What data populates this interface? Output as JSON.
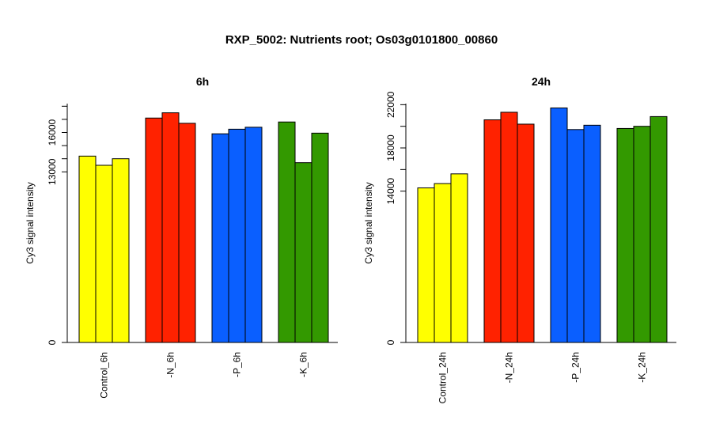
{
  "title": "RXP_5002: Nutrients root; Os03g0101800_00860",
  "chart_data": [
    {
      "type": "bar",
      "title": "6h",
      "ylabel": "Cy3 signal intensity",
      "ylim": [
        0,
        18200
      ],
      "major_ticks": [
        0,
        13000,
        16000
      ],
      "minor_ticks": [
        14000,
        15000,
        17000,
        18000
      ],
      "categories": [
        "Control_6h",
        "-N_6h",
        "-P_6h",
        "-K_6h"
      ],
      "colors": [
        "#ffff00",
        "#ff2200",
        "#0a5fff",
        "#339900"
      ],
      "values": [
        [
          14200,
          13500,
          14000
        ],
        [
          17100,
          17500,
          16700
        ],
        [
          15900,
          16250,
          16400
        ],
        [
          16800,
          13700,
          15950
        ]
      ]
    },
    {
      "type": "bar",
      "title": "24h",
      "ylabel": "Cy3 signal intensity",
      "ylim": [
        0,
        22100
      ],
      "major_ticks": [
        0,
        14000,
        18000,
        22000
      ],
      "minor_ticks": [
        16000,
        20000
      ],
      "categories": [
        "Control_24h",
        "-N_24h",
        "-P_24h",
        "-K_24h"
      ],
      "colors": [
        "#ffff00",
        "#ff2200",
        "#0a5fff",
        "#339900"
      ],
      "values": [
        [
          14300,
          14700,
          15600
        ],
        [
          20600,
          21300,
          20200
        ],
        [
          21700,
          19700,
          20100
        ],
        [
          19800,
          20000,
          20900
        ]
      ]
    }
  ]
}
